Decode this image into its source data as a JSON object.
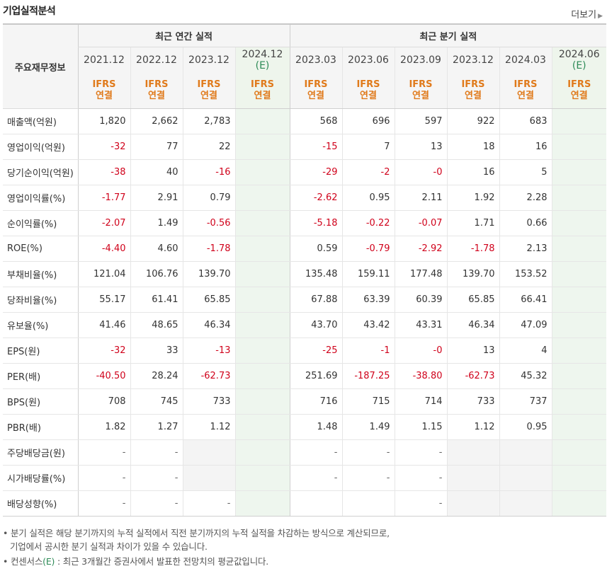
{
  "title": "기업실적분석",
  "more_label": "더보기",
  "header": {
    "row_header": "주요재무정보",
    "annual_group": "최근 연간 실적",
    "quarter_group": "최근 분기 실적",
    "annual_periods": [
      {
        "date": "2021.12",
        "est": "",
        "std": "IFRS",
        "basis": "연결"
      },
      {
        "date": "2022.12",
        "est": "",
        "std": "IFRS",
        "basis": "연결"
      },
      {
        "date": "2023.12",
        "est": "",
        "std": "IFRS",
        "basis": "연결"
      },
      {
        "date": "2024.12",
        "est": "(E)",
        "std": "IFRS",
        "basis": "연결"
      }
    ],
    "quarter_periods": [
      {
        "date": "2023.03",
        "est": "",
        "std": "IFRS",
        "basis": "연결"
      },
      {
        "date": "2023.06",
        "est": "",
        "std": "IFRS",
        "basis": "연결"
      },
      {
        "date": "2023.09",
        "est": "",
        "std": "IFRS",
        "basis": "연결"
      },
      {
        "date": "2023.12",
        "est": "",
        "std": "IFRS",
        "basis": "연결"
      },
      {
        "date": "2024.03",
        "est": "",
        "std": "IFRS",
        "basis": "연결"
      },
      {
        "date": "2024.06",
        "est": "(E)",
        "std": "IFRS",
        "basis": "연결"
      }
    ]
  },
  "rows": [
    {
      "label": "매출액(억원)",
      "values": [
        "1,820",
        "2,662",
        "2,783",
        "",
        "568",
        "696",
        "597",
        "922",
        "683",
        ""
      ]
    },
    {
      "label": "영업이익(억원)",
      "values": [
        "-32",
        "77",
        "22",
        "",
        "-15",
        "7",
        "13",
        "18",
        "16",
        ""
      ]
    },
    {
      "label": "당기순이익(억원)",
      "values": [
        "-38",
        "40",
        "-16",
        "",
        "-29",
        "-2",
        "-0",
        "16",
        "5",
        ""
      ]
    },
    {
      "label": "영업이익률(%)",
      "values": [
        "-1.77",
        "2.91",
        "0.79",
        "",
        "-2.62",
        "0.95",
        "2.11",
        "1.92",
        "2.28",
        ""
      ]
    },
    {
      "label": "순이익률(%)",
      "values": [
        "-2.07",
        "1.49",
        "-0.56",
        "",
        "-5.18",
        "-0.22",
        "-0.07",
        "1.71",
        "0.66",
        ""
      ]
    },
    {
      "label": "ROE(%)",
      "values": [
        "-4.40",
        "4.60",
        "-1.78",
        "",
        "0.59",
        "-0.79",
        "-2.92",
        "-1.78",
        "2.13",
        ""
      ]
    },
    {
      "label": "부채비율(%)",
      "values": [
        "121.04",
        "106.76",
        "139.70",
        "",
        "135.48",
        "159.11",
        "177.48",
        "139.70",
        "153.52",
        ""
      ]
    },
    {
      "label": "당좌비율(%)",
      "values": [
        "55.17",
        "61.41",
        "65.85",
        "",
        "67.88",
        "63.39",
        "60.39",
        "65.85",
        "66.41",
        ""
      ]
    },
    {
      "label": "유보율(%)",
      "values": [
        "41.46",
        "48.65",
        "46.34",
        "",
        "43.70",
        "43.42",
        "43.31",
        "46.34",
        "47.09",
        ""
      ]
    },
    {
      "label": "EPS(원)",
      "values": [
        "-32",
        "33",
        "-13",
        "",
        "-25",
        "-1",
        "-0",
        "13",
        "4",
        ""
      ]
    },
    {
      "label": "PER(배)",
      "values": [
        "-40.50",
        "28.24",
        "-62.73",
        "",
        "251.69",
        "-187.25",
        "-38.80",
        "-62.73",
        "45.32",
        ""
      ]
    },
    {
      "label": "BPS(원)",
      "values": [
        "708",
        "745",
        "733",
        "",
        "716",
        "715",
        "714",
        "733",
        "737",
        ""
      ]
    },
    {
      "label": "PBR(배)",
      "values": [
        "1.82",
        "1.27",
        "1.12",
        "",
        "1.48",
        "1.49",
        "1.15",
        "1.12",
        "0.95",
        ""
      ]
    },
    {
      "label": "주당배당금(원)",
      "values": [
        "-",
        "-",
        null,
        "",
        "-",
        "-",
        "-",
        null,
        null,
        ""
      ]
    },
    {
      "label": "시가배당률(%)",
      "values": [
        "-",
        "-",
        null,
        "",
        "-",
        "-",
        "-",
        null,
        null,
        ""
      ]
    },
    {
      "label": "배당성향(%)",
      "values": [
        "-",
        "-",
        "-",
        "",
        "",
        "",
        "-",
        null,
        null,
        ""
      ]
    }
  ],
  "notes": {
    "line1": "분기 실적은 해당 분기까지의 누적 실적에서 직전 분기까지의 누적 실적을 차감하는 방식으로 계산되므로,",
    "line2": "기업에서 공시한 분기 실적과 차이가 있을 수 있습니다.",
    "line3_prefix": "컨센서스",
    "line3_mark": "(E)",
    "line3_suffix": " : 최근 3개월간 증권사에서 발표한 전망치의 평균값입니다."
  },
  "colors": {
    "negative": "#d0021b",
    "accent_orange": "#e07a1b",
    "estimate_green": "#2e8b57"
  }
}
